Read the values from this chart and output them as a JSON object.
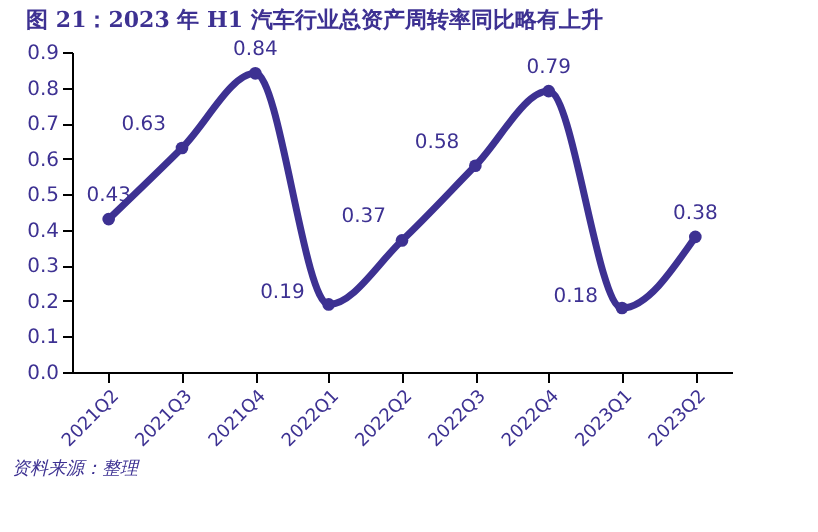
{
  "chart_data": {
    "type": "line",
    "title": "图 21：2023 年 H1 汽车行业总资产周转率同比略有上升",
    "categories": [
      "2021Q2",
      "2021Q3",
      "2021Q4",
      "2022Q1",
      "2022Q2",
      "2022Q3",
      "2022Q4",
      "2023Q1",
      "2023Q2"
    ],
    "series": [
      {
        "color": "#3d3192",
        "values": [
          0.43,
          0.63,
          0.84,
          0.19,
          0.37,
          0.58,
          0.79,
          0.18,
          0.38
        ]
      }
    ],
    "ylim": [
      0,
      0.9
    ],
    "yticks": [
      {
        "value": 0,
        "label": "0.0"
      },
      0.1,
      0.2,
      0.3,
      0.4,
      0.5,
      0.6,
      0.7,
      0.8,
      0.9
    ],
    "grid": false,
    "marker": "circle",
    "line_style": "solid",
    "data_labels": true,
    "annotations": [
      "资料来源：整理"
    ]
  }
}
